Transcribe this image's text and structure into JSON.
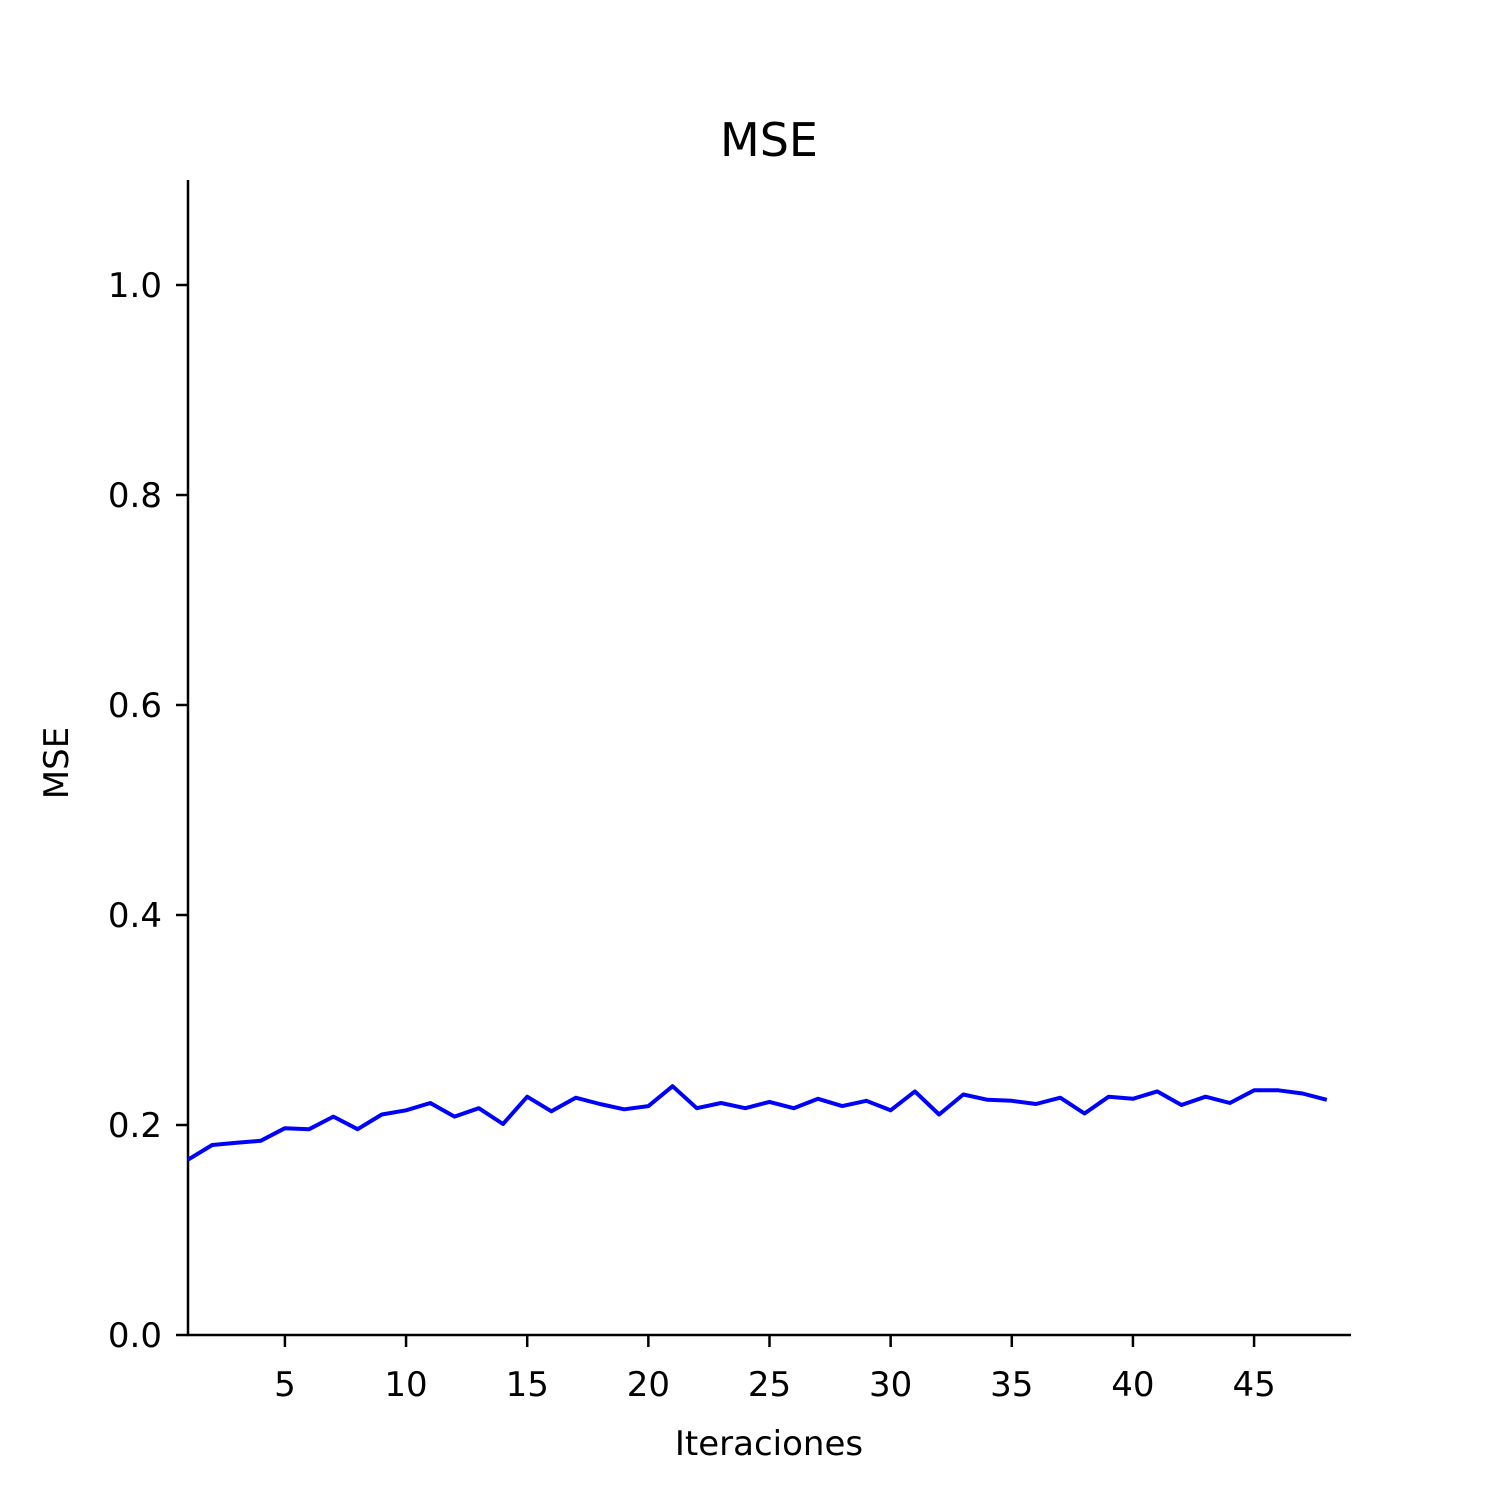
{
  "chart_data": {
    "type": "line",
    "title": "MSE",
    "xlabel": "Iteraciones",
    "ylabel": "MSE",
    "xlim": [
      1,
      49
    ],
    "ylim": [
      0,
      1.1
    ],
    "xticks": [
      5,
      10,
      15,
      20,
      25,
      30,
      35,
      40,
      45
    ],
    "xtick_labels": [
      "5",
      "10",
      "15",
      "20",
      "25",
      "30",
      "35",
      "40",
      "45"
    ],
    "yticks": [
      0.0,
      0.2,
      0.4,
      0.6,
      0.8,
      1.0
    ],
    "ytick_labels": [
      "0.0",
      "0.2",
      "0.4",
      "0.6",
      "0.8",
      "1.0"
    ],
    "grid": false,
    "legend": false,
    "series": [
      {
        "color": "#0000ff",
        "x": [
          1,
          2,
          3,
          4,
          5,
          6,
          7,
          8,
          9,
          10,
          11,
          12,
          13,
          14,
          15,
          16,
          17,
          18,
          19,
          20,
          21,
          22,
          23,
          24,
          25,
          26,
          27,
          28,
          29,
          30,
          31,
          32,
          33,
          34,
          35,
          36,
          37,
          38,
          39,
          40,
          41,
          42,
          43,
          44,
          45,
          46,
          47,
          48
        ],
        "y": [
          0.167,
          0.181,
          0.183,
          0.185,
          0.197,
          0.196,
          0.208,
          0.196,
          0.21,
          0.214,
          0.221,
          0.208,
          0.216,
          0.201,
          0.227,
          0.213,
          0.226,
          0.22,
          0.215,
          0.218,
          0.237,
          0.216,
          0.221,
          0.216,
          0.222,
          0.216,
          0.225,
          0.218,
          0.223,
          0.214,
          0.232,
          0.21,
          0.229,
          0.224,
          0.223,
          0.22,
          0.226,
          0.211,
          0.227,
          0.225,
          0.232,
          0.219,
          0.227,
          0.221,
          0.233,
          0.233,
          0.23,
          0.224
        ]
      }
    ]
  }
}
